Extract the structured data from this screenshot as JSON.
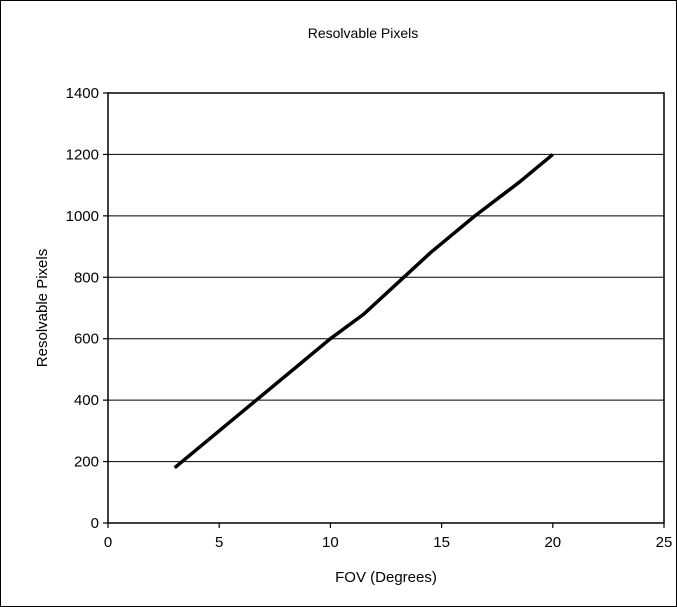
{
  "chart_data": {
    "type": "line",
    "title": "Resolvable Pixels",
    "xlabel": "FOV (Degrees)",
    "ylabel": "Resolvable Pixels",
    "xlim": [
      0,
      25
    ],
    "ylim": [
      0,
      1400
    ],
    "xticks": [
      0,
      5,
      10,
      15,
      20,
      25
    ],
    "yticks": [
      0,
      200,
      400,
      600,
      800,
      1000,
      1200,
      1400
    ],
    "grid": "horizontal",
    "legend": "none",
    "series": [
      {
        "color": "#000000",
        "x": [
          3,
          4.5,
          6.5,
          8.5,
          10,
          11.5,
          13,
          14.5,
          16.5,
          18.5,
          20
        ],
        "y": [
          180,
          270,
          390,
          510,
          600,
          680,
          780,
          880,
          1000,
          1110,
          1200
        ]
      }
    ]
  }
}
